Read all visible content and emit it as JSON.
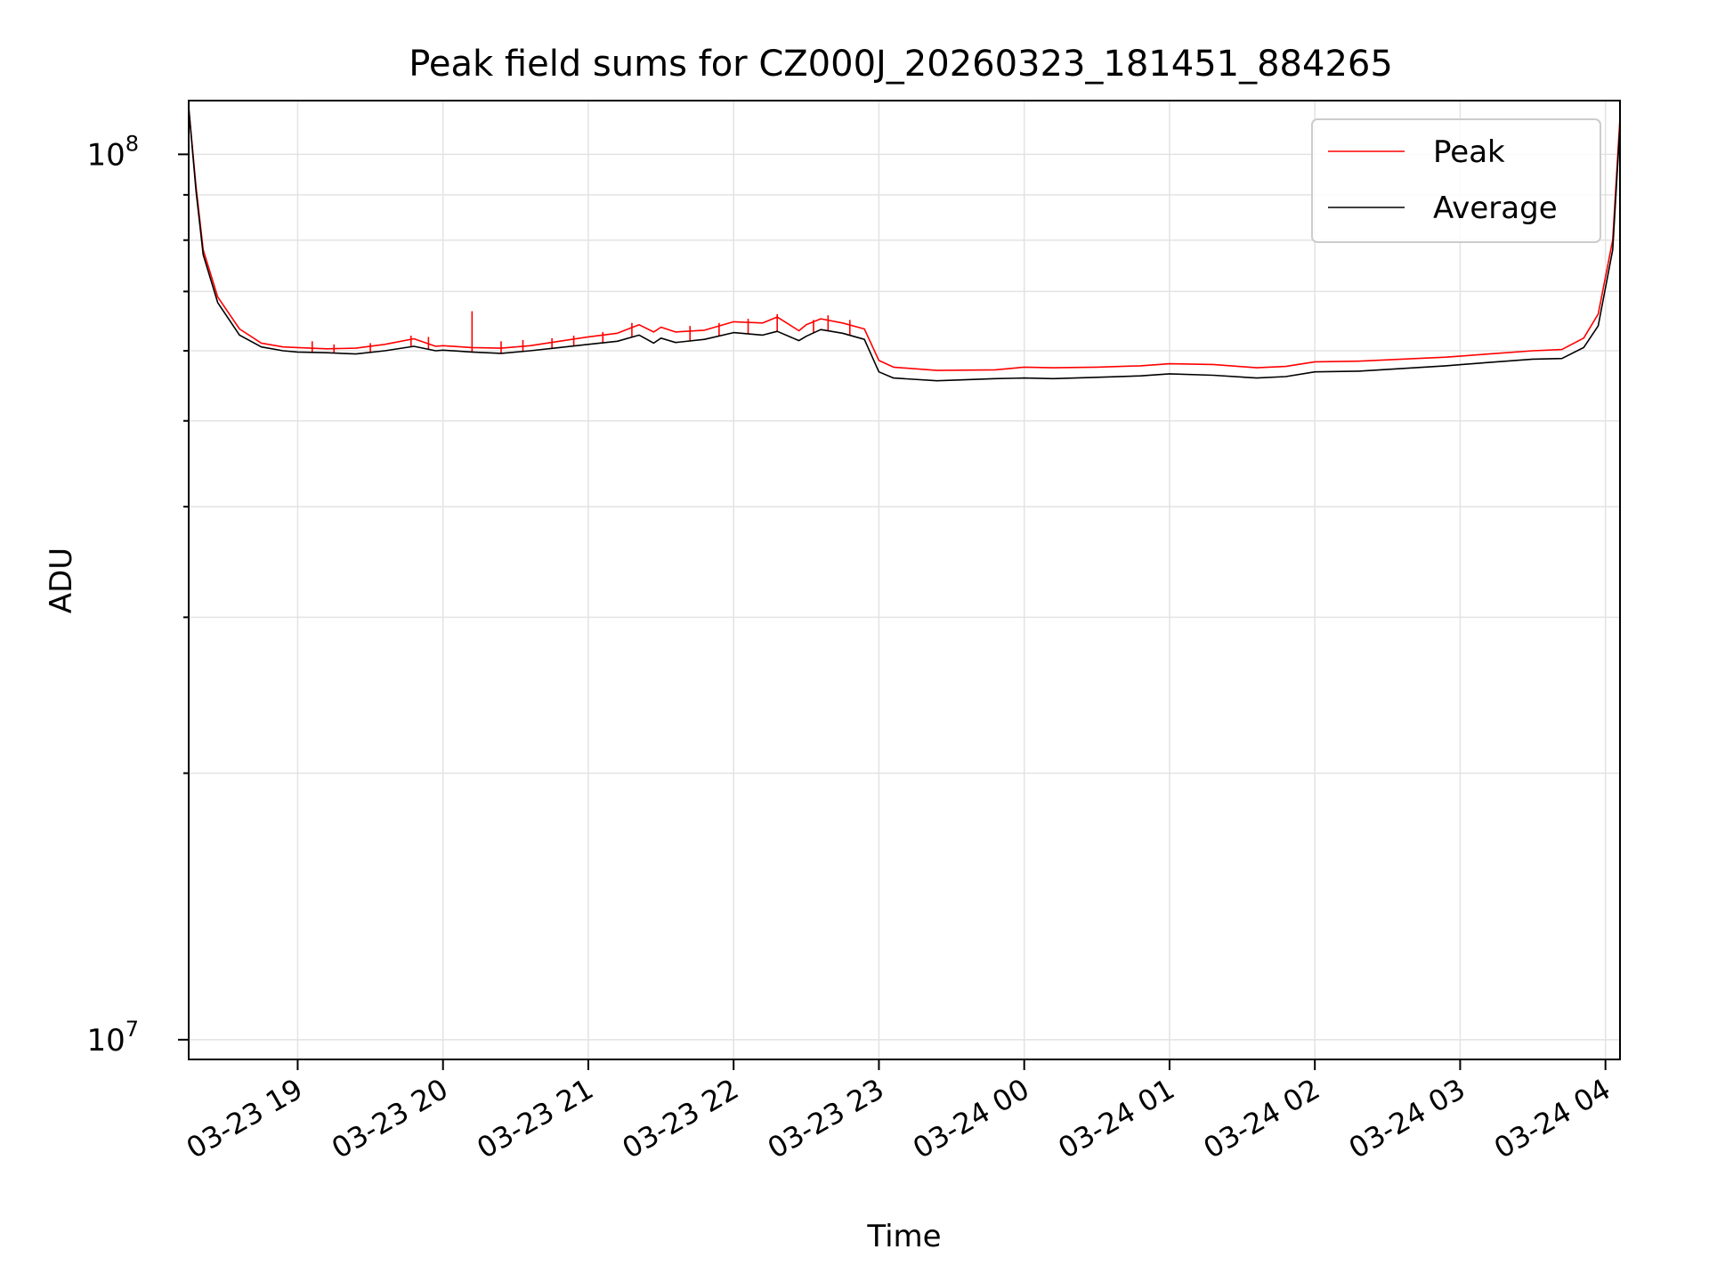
{
  "chart_data": {
    "type": "line",
    "title": "Peak field sums for CZ000J_20260323_181451_884265",
    "xlabel": "Time",
    "ylabel": "ADU",
    "yscale": "log",
    "ylim": [
      9500000,
      115000000
    ],
    "xlim_hours_from_0323_18": [
      0.25,
      10.1
    ],
    "grid": true,
    "legend_position": "upper right",
    "x_ticks": [
      {
        "label": "03-23 19",
        "hour": 1
      },
      {
        "label": "03-23 20",
        "hour": 2
      },
      {
        "label": "03-23 21",
        "hour": 3
      },
      {
        "label": "03-23 22",
        "hour": 4
      },
      {
        "label": "03-23 23",
        "hour": 5
      },
      {
        "label": "03-24 00",
        "hour": 6
      },
      {
        "label": "03-24 01",
        "hour": 7
      },
      {
        "label": "03-24 02",
        "hour": 8
      },
      {
        "label": "03-24 03",
        "hour": 9
      },
      {
        "label": "03-24 04",
        "hour": 10
      }
    ],
    "y_ticks": [
      {
        "label_base": "10",
        "label_exp": "7",
        "value": 10000000
      },
      {
        "label_base": "10",
        "label_exp": "8",
        "value": 100000000
      }
    ],
    "series": [
      {
        "name": "Peak",
        "color": "#ff0000",
        "x_hours": [
          0.25,
          0.3,
          0.35,
          0.45,
          0.6,
          0.75,
          0.9,
          1.0,
          1.2,
          1.4,
          1.6,
          1.8,
          1.95,
          2.0,
          2.2,
          2.4,
          2.6,
          2.8,
          3.0,
          3.2,
          3.35,
          3.45,
          3.5,
          3.6,
          3.8,
          4.0,
          4.2,
          4.3,
          4.45,
          4.5,
          4.6,
          4.75,
          4.9,
          5.0,
          5.1,
          5.4,
          5.8,
          6.0,
          6.2,
          6.5,
          6.8,
          7.0,
          7.3,
          7.6,
          7.8,
          8.0,
          8.3,
          8.6,
          8.9,
          9.2,
          9.5,
          9.7,
          9.85,
          9.95,
          10.05,
          10.1
        ],
        "values": [
          113000000,
          92000000,
          78000000,
          69000000,
          63500000,
          61200000,
          60600000,
          60500000,
          60300000,
          60400000,
          61000000,
          61900000,
          60700000,
          60800000,
          60500000,
          60400000,
          60800000,
          61500000,
          62200000,
          62800000,
          64200000,
          63000000,
          63800000,
          63000000,
          63300000,
          64700000,
          64500000,
          65500000,
          63200000,
          64200000,
          65200000,
          64500000,
          63500000,
          58500000,
          57500000,
          57000000,
          57100000,
          57500000,
          57400000,
          57500000,
          57700000,
          58000000,
          57900000,
          57400000,
          57600000,
          58300000,
          58400000,
          58700000,
          59000000,
          59500000,
          60000000,
          60200000,
          62000000,
          66000000,
          80000000,
          110000000
        ]
      },
      {
        "name": "Average",
        "color": "#000000",
        "x_hours": [
          0.25,
          0.3,
          0.35,
          0.45,
          0.6,
          0.75,
          0.9,
          1.0,
          1.2,
          1.4,
          1.6,
          1.8,
          1.95,
          2.0,
          2.2,
          2.4,
          2.6,
          2.8,
          3.0,
          3.2,
          3.35,
          3.45,
          3.5,
          3.6,
          3.8,
          4.0,
          4.2,
          4.3,
          4.45,
          4.5,
          4.6,
          4.75,
          4.9,
          5.0,
          5.1,
          5.4,
          5.8,
          6.0,
          6.2,
          6.5,
          6.8,
          7.0,
          7.3,
          7.6,
          7.8,
          8.0,
          8.3,
          8.6,
          8.9,
          9.2,
          9.5,
          9.7,
          9.85,
          9.95,
          10.05,
          10.1
        ],
        "values": [
          113000000,
          91000000,
          77000000,
          68000000,
          62500000,
          60600000,
          60000000,
          59800000,
          59700000,
          59500000,
          60000000,
          60700000,
          60000000,
          60100000,
          59800000,
          59600000,
          60000000,
          60500000,
          61000000,
          61500000,
          62500000,
          61200000,
          62000000,
          61300000,
          61800000,
          62900000,
          62500000,
          63100000,
          61600000,
          62300000,
          63400000,
          62800000,
          61800000,
          56800000,
          55900000,
          55500000,
          55800000,
          55900000,
          55800000,
          56000000,
          56200000,
          56500000,
          56300000,
          55900000,
          56100000,
          56800000,
          56900000,
          57300000,
          57700000,
          58200000,
          58700000,
          58800000,
          60500000,
          64000000,
          78000000,
          108000000
        ]
      }
    ],
    "peak_spikes": [
      {
        "hour": 2.2,
        "value": 66500000
      },
      {
        "hour": 1.1,
        "value": 61500000
      },
      {
        "hour": 1.25,
        "value": 61000000
      },
      {
        "hour": 1.5,
        "value": 61200000
      },
      {
        "hour": 1.78,
        "value": 62400000
      },
      {
        "hour": 1.9,
        "value": 62200000
      },
      {
        "hour": 2.4,
        "value": 61500000
      },
      {
        "hour": 2.55,
        "value": 61700000
      },
      {
        "hour": 2.75,
        "value": 62000000
      },
      {
        "hour": 2.9,
        "value": 62400000
      },
      {
        "hour": 3.1,
        "value": 63000000
      },
      {
        "hour": 3.3,
        "value": 64500000
      },
      {
        "hour": 3.7,
        "value": 64000000
      },
      {
        "hour": 3.9,
        "value": 64500000
      },
      {
        "hour": 4.1,
        "value": 65200000
      },
      {
        "hour": 4.3,
        "value": 66000000
      },
      {
        "hour": 4.55,
        "value": 65000000
      },
      {
        "hour": 4.65,
        "value": 65800000
      },
      {
        "hour": 4.8,
        "value": 65000000
      }
    ]
  },
  "legend": {
    "entries": [
      "Peak",
      "Average"
    ]
  }
}
